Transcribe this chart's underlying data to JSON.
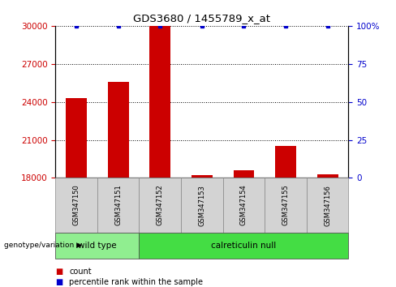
{
  "title": "GDS3680 / 1455789_x_at",
  "samples": [
    "GSM347150",
    "GSM347151",
    "GSM347152",
    "GSM347153",
    "GSM347154",
    "GSM347155",
    "GSM347156"
  ],
  "counts": [
    24300,
    25600,
    30000,
    18200,
    18600,
    20500,
    18300
  ],
  "percentiles": [
    100,
    100,
    100,
    100,
    100,
    100,
    100
  ],
  "ylim_left": [
    18000,
    30000
  ],
  "ylim_right": [
    0,
    100
  ],
  "yticks_left": [
    18000,
    21000,
    24000,
    27000,
    30000
  ],
  "yticks_right": [
    0,
    25,
    50,
    75,
    100
  ],
  "group_configs": [
    {
      "indices": [
        0,
        1
      ],
      "label": "wild type",
      "color": "#90ee90"
    },
    {
      "indices": [
        2,
        3,
        4,
        5,
        6
      ],
      "label": "calreticulin null",
      "color": "#44dd44"
    }
  ],
  "bar_color": "#cc0000",
  "percentile_color": "#0000cc",
  "background_color": "#ffffff",
  "grid_color": "#000000",
  "tick_color_left": "#cc0000",
  "tick_color_right": "#0000cc",
  "bar_width": 0.5,
  "legend_count_label": "count",
  "legend_percentile_label": "percentile rank within the sample",
  "genotype_label": "genotype/variation"
}
